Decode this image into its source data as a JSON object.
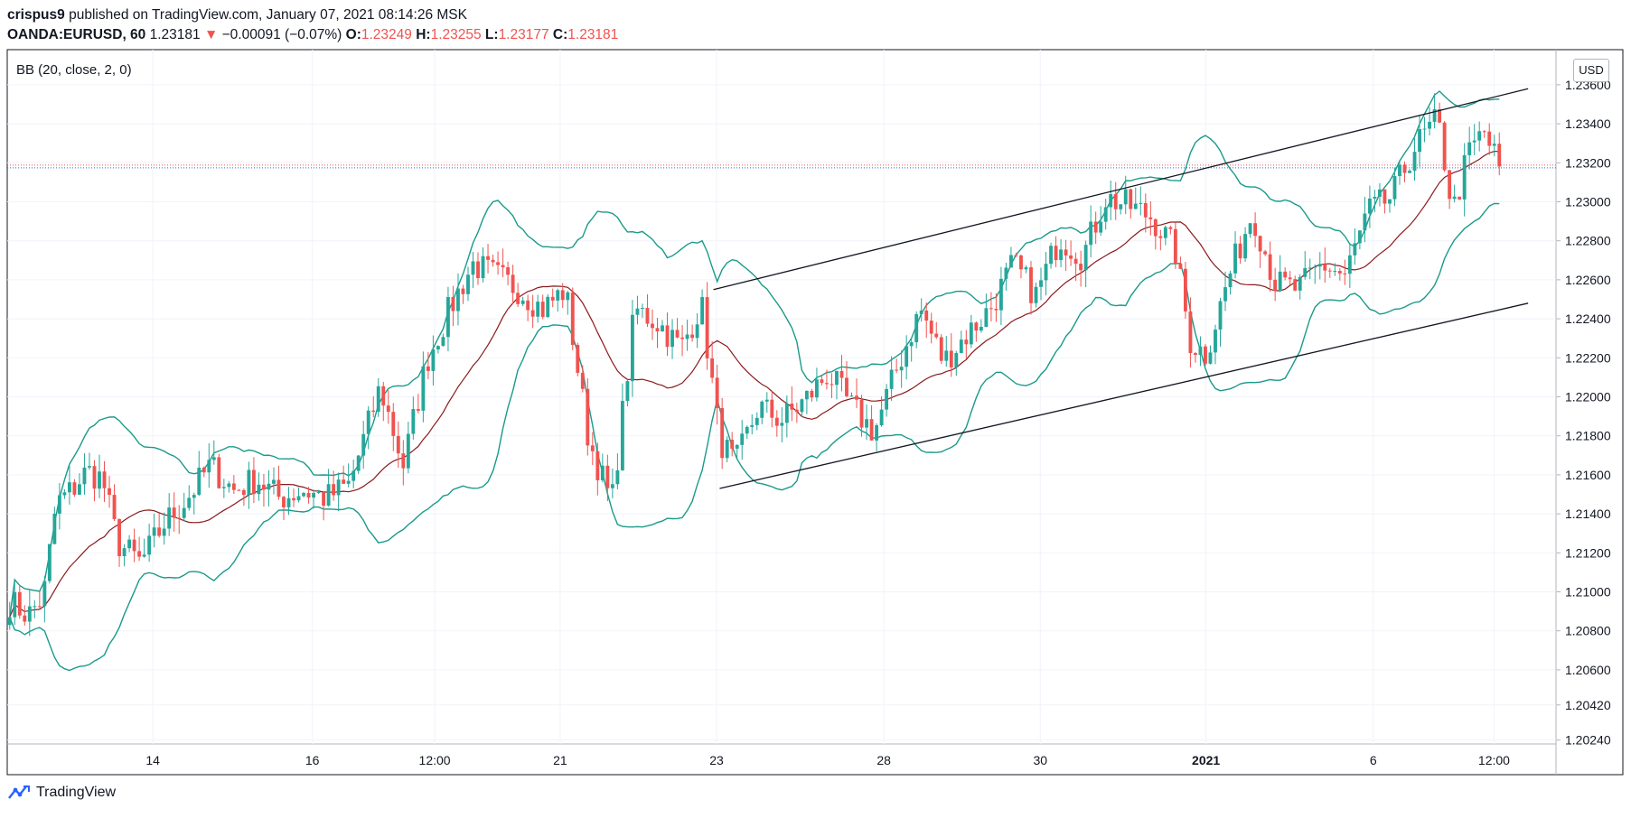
{
  "header": {
    "author": "crispus9",
    "published_text": "published on TradingView.com, January 07, 2021 08:14:26 MSK",
    "symbol": "OANDA:EURUSD, 60",
    "last_price": "1.23181",
    "arrow": "▼",
    "change": "−0.00091 (−0.07%)",
    "o_label": "O:",
    "o_value": "1.23249",
    "h_label": "H:",
    "h_value": "1.23255",
    "l_label": "L:",
    "l_value": "1.23177",
    "c_label": "C:",
    "c_value": "1.23181"
  },
  "indicator_label": "BB (20, close, 2, 0)",
  "currency_badge": "USD",
  "footer": {
    "brand": "TradingView"
  },
  "colors": {
    "up": "#26a69a",
    "down": "#ef5350",
    "bb_band": "#1a9a8a",
    "bb_basis": "#8b1a1a",
    "trend_line": "#131722",
    "price_line_red": "#ef5350",
    "price_line_blue": "#2962ff",
    "grid": "#f0f3fa",
    "text": "#131722"
  },
  "chart_data": {
    "type": "candlestick",
    "price_scale_labels": [
      "1.23600",
      "1.23400",
      "1.23200",
      "1.23000",
      "1.22800",
      "1.22600",
      "1.22400",
      "1.22200",
      "1.22000",
      "1.21800",
      "1.21600",
      "1.21400",
      "1.21200",
      "1.21000",
      "1.20800",
      "1.20600",
      "1.20420",
      "1.20240"
    ],
    "price_ticks": [
      1.236,
      1.234,
      1.232,
      1.23,
      1.228,
      1.226,
      1.224,
      1.222,
      1.22,
      1.218,
      1.216,
      1.214,
      1.212,
      1.21,
      1.208,
      1.206,
      1.2042,
      1.2024
    ],
    "ylim": [
      1.2022,
      1.2378
    ],
    "time_labels": [
      "14",
      "16",
      "12:00",
      "21",
      "23",
      "28",
      "30",
      "2021",
      "6",
      "12:00"
    ],
    "time_label_positions": [
      0.094,
      0.197,
      0.276,
      0.357,
      0.458,
      0.566,
      0.667,
      0.774,
      0.882,
      0.96
    ],
    "last_price": 1.23181,
    "anchor_prices": [
      [
        0.0,
        1.2095
      ],
      [
        0.012,
        1.2088
      ],
      [
        0.022,
        1.2098
      ],
      [
        0.03,
        1.2145
      ],
      [
        0.04,
        1.2152
      ],
      [
        0.05,
        1.2162
      ],
      [
        0.06,
        1.2158
      ],
      [
        0.07,
        1.2125
      ],
      [
        0.085,
        1.2115
      ],
      [
        0.1,
        1.2135
      ],
      [
        0.115,
        1.2148
      ],
      [
        0.13,
        1.2165
      ],
      [
        0.145,
        1.2152
      ],
      [
        0.16,
        1.2158
      ],
      [
        0.175,
        1.2148
      ],
      [
        0.19,
        1.2152
      ],
      [
        0.205,
        1.2148
      ],
      [
        0.22,
        1.2155
      ],
      [
        0.24,
        1.2205
      ],
      [
        0.255,
        1.2165
      ],
      [
        0.27,
        1.2218
      ],
      [
        0.285,
        1.2245
      ],
      [
        0.3,
        1.2268
      ],
      [
        0.315,
        1.2262
      ],
      [
        0.33,
        1.2255
      ],
      [
        0.345,
        1.2245
      ],
      [
        0.36,
        1.2255
      ],
      [
        0.375,
        1.2178
      ],
      [
        0.39,
        1.2145
      ],
      [
        0.405,
        1.2245
      ],
      [
        0.42,
        1.2238
      ],
      [
        0.435,
        1.2225
      ],
      [
        0.448,
        1.2248
      ],
      [
        0.46,
        1.2178
      ],
      [
        0.47,
        1.2165
      ],
      [
        0.485,
        1.2195
      ],
      [
        0.5,
        1.2188
      ],
      [
        0.515,
        1.2198
      ],
      [
        0.53,
        1.2212
      ],
      [
        0.545,
        1.2195
      ],
      [
        0.56,
        1.2182
      ],
      [
        0.575,
        1.2215
      ],
      [
        0.59,
        1.2245
      ],
      [
        0.605,
        1.2218
      ],
      [
        0.62,
        1.2232
      ],
      [
        0.635,
        1.2245
      ],
      [
        0.65,
        1.2268
      ],
      [
        0.665,
        1.2252
      ],
      [
        0.68,
        1.2282
      ],
      [
        0.695,
        1.2272
      ],
      [
        0.71,
        1.2302
      ],
      [
        0.725,
        1.2298
      ],
      [
        0.74,
        1.2292
      ],
      [
        0.755,
        1.2275
      ],
      [
        0.765,
        1.2228
      ],
      [
        0.775,
        1.2222
      ],
      [
        0.79,
        1.2262
      ],
      [
        0.805,
        1.2295
      ],
      [
        0.82,
        1.2258
      ],
      [
        0.835,
        1.2255
      ],
      [
        0.85,
        1.2268
      ],
      [
        0.865,
        1.2262
      ],
      [
        0.88,
        1.2295
      ],
      [
        0.895,
        1.2302
      ],
      [
        0.91,
        1.2328
      ],
      [
        0.925,
        1.2342
      ],
      [
        0.935,
        1.2295
      ],
      [
        0.945,
        1.2325
      ],
      [
        0.955,
        1.2336
      ],
      [
        0.965,
        1.2318
      ]
    ],
    "trend_lines": [
      {
        "from": [
          0.456,
          1.2255
        ],
        "to": [
          0.982,
          1.2358
        ]
      },
      {
        "from": [
          0.46,
          1.2153
        ],
        "to": [
          0.982,
          1.2248
        ]
      }
    ],
    "indicator": {
      "name": "BB",
      "length": 20,
      "source": "close",
      "mult": 2,
      "offset": 0
    }
  }
}
